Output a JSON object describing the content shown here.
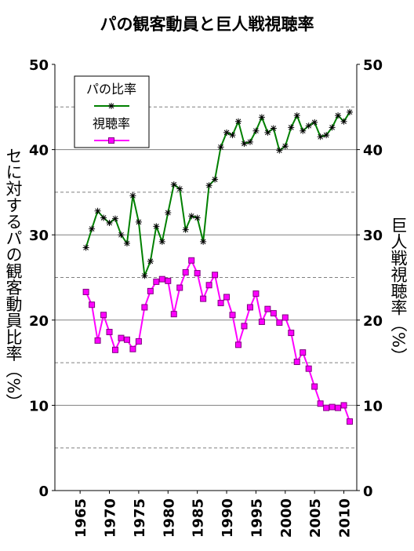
{
  "chart_data": {
    "type": "line",
    "title": "パの観客動員と巨人戦視聴率",
    "y_label": "セに対するパの観客動員比率（%）",
    "y2_label": "巨人戦視聴率（%）",
    "x": [
      1966,
      1967,
      1968,
      1969,
      1970,
      1971,
      1972,
      1973,
      1974,
      1975,
      1976,
      1977,
      1978,
      1979,
      1980,
      1981,
      1982,
      1983,
      1984,
      1985,
      1986,
      1987,
      1988,
      1989,
      1990,
      1991,
      1992,
      1993,
      1994,
      1995,
      1996,
      1997,
      1998,
      1999,
      2000,
      2001,
      2002,
      2003,
      2004,
      2005,
      2006,
      2007,
      2008,
      2009,
      2010,
      2011
    ],
    "xlim": [
      1960.7,
      2012.2
    ],
    "xticks": [
      1965,
      1970,
      1975,
      1980,
      1985,
      1990,
      1995,
      2000,
      2005,
      2010
    ],
    "ylim": [
      0,
      50
    ],
    "yticks": [
      0,
      10,
      20,
      30,
      40,
      50
    ],
    "y2lim": [
      0,
      50
    ],
    "y2ticks": [
      0,
      10,
      20,
      30,
      40,
      50
    ],
    "minor_grid": [
      5,
      15,
      25,
      35,
      45
    ],
    "grid": true,
    "legend": "upper left",
    "series": [
      {
        "name": "パの比率",
        "color": "#008000",
        "values": [
          28.5,
          30.7,
          32.8,
          32.0,
          31.4,
          31.9,
          30.0,
          29.0,
          34.6,
          31.5,
          25.2,
          26.9,
          31.0,
          29.2,
          32.6,
          35.9,
          35.4,
          30.6,
          32.2,
          32.0,
          29.2,
          35.8,
          36.5,
          40.3,
          42.0,
          41.7,
          43.3,
          40.7,
          40.9,
          42.2,
          43.8,
          42.0,
          42.5,
          39.9,
          40.4,
          42.6,
          44.0,
          42.2,
          42.8,
          43.2,
          41.5,
          41.7,
          42.6,
          44.0,
          43.3,
          44.4
        ]
      },
      {
        "name": "視聴率",
        "color": "#ff00ff",
        "axis": "y2",
        "values": [
          23.3,
          21.8,
          17.6,
          20.6,
          18.6,
          16.5,
          17.9,
          17.7,
          16.6,
          17.5,
          21.5,
          23.4,
          24.5,
          24.8,
          24.6,
          20.7,
          23.8,
          25.6,
          27.0,
          25.5,
          22.5,
          24.1,
          25.3,
          22.0,
          22.7,
          20.6,
          17.1,
          19.3,
          21.5,
          23.1,
          19.8,
          21.3,
          20.8,
          19.7,
          20.3,
          18.5,
          15.1,
          16.2,
          14.3,
          12.2,
          10.2,
          9.7,
          9.8,
          9.7,
          10.0,
          8.1
        ]
      }
    ]
  }
}
